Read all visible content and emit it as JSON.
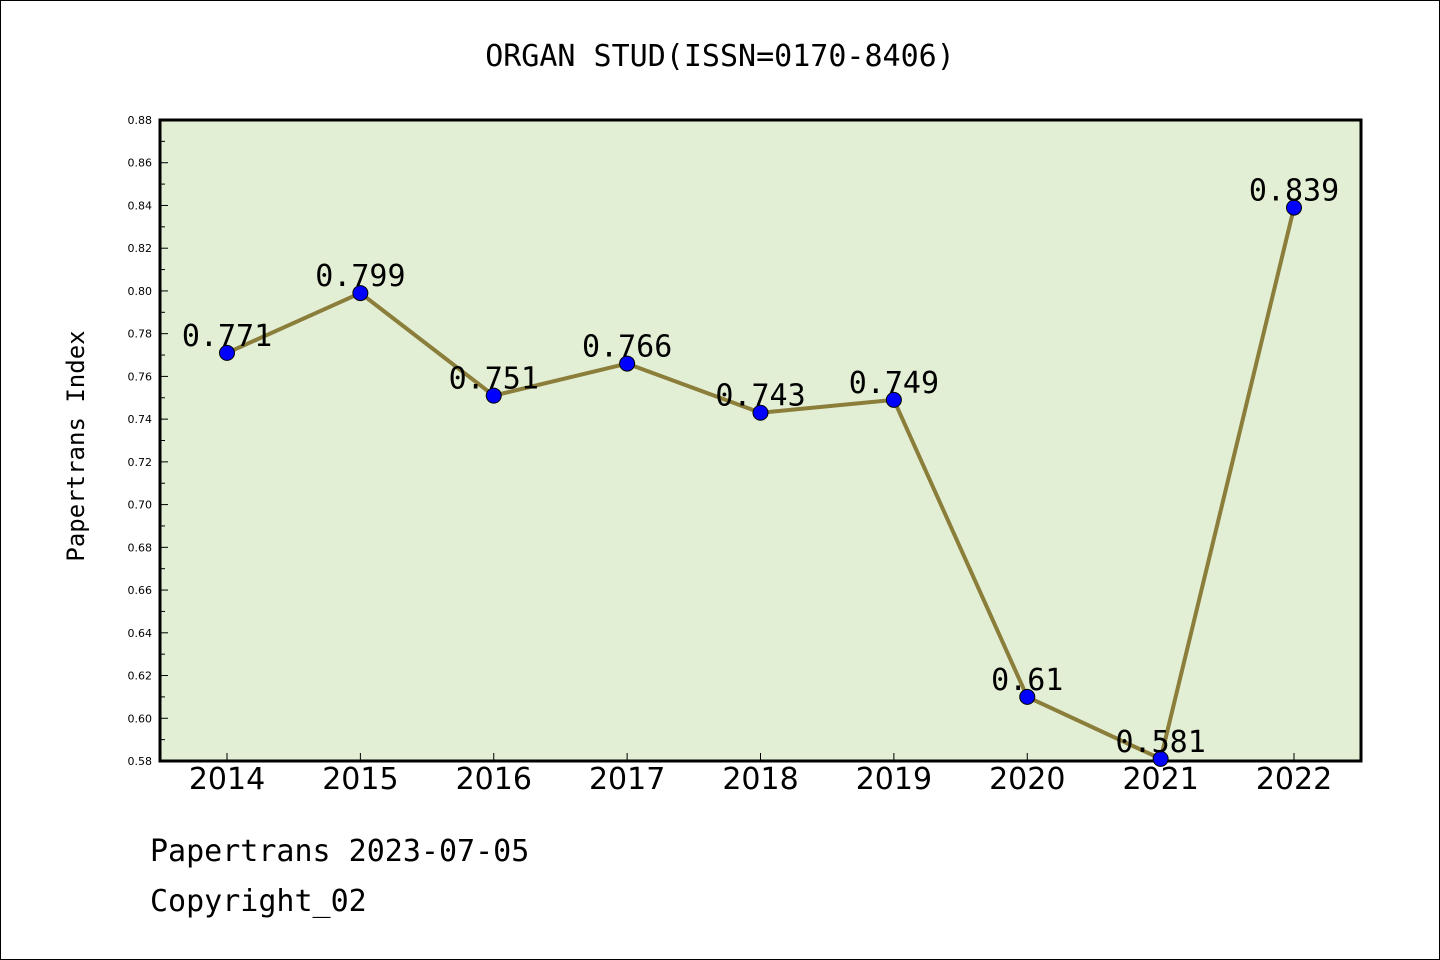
{
  "chart_data": {
    "type": "line",
    "title": "ORGAN STUD(ISSN=0170-8406)",
    "xlabel": "",
    "ylabel": "Papertrans Index",
    "categories": [
      "2014",
      "2015",
      "2016",
      "2017",
      "2018",
      "2019",
      "2020",
      "2021",
      "2022"
    ],
    "series": [
      {
        "values": [
          0.771,
          0.799,
          0.751,
          0.766,
          0.743,
          0.749,
          0.61,
          0.581,
          0.839
        ],
        "labels": [
          "0.771",
          "0.799",
          "0.751",
          "0.766",
          "0.743",
          "0.749",
          "0.61",
          "0.581",
          "0.839"
        ],
        "line_color": "#8b7d3a",
        "marker_color": "#0000ff"
      }
    ],
    "ylim": [
      0.58,
      0.88
    ],
    "yticks": [
      "0.58",
      "0.60",
      "0.62",
      "0.64",
      "0.66",
      "0.68",
      "0.70",
      "0.72",
      "0.74",
      "0.76",
      "0.78",
      "0.80",
      "0.82",
      "0.84",
      "0.86",
      "0.88"
    ],
    "plot_background": "#e2efd5",
    "grid": false,
    "legend": "none"
  },
  "footer": {
    "line1": "Papertrans 2023-07-05",
    "line2": "Copyright_02"
  }
}
